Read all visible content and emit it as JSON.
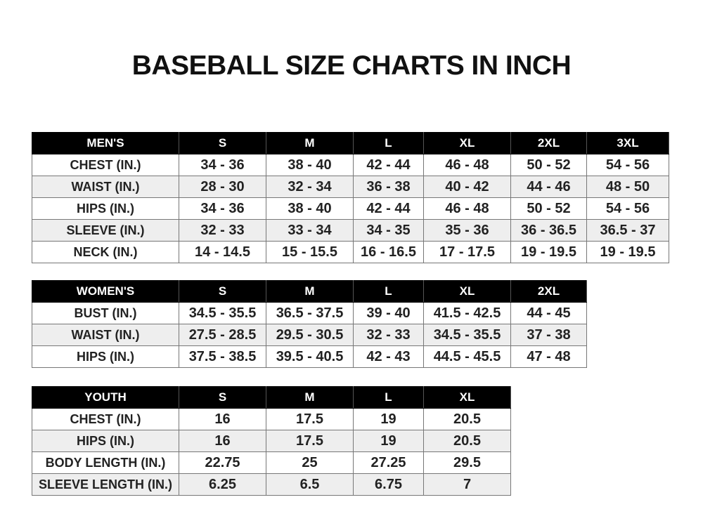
{
  "title": "BASEBALL SIZE CHARTS IN INCH",
  "tables": [
    {
      "header": [
        "MEN'S",
        "S",
        "M",
        "L",
        "XL",
        "2XL",
        "3XL"
      ],
      "rows": [
        [
          "CHEST (IN.)",
          "34 - 36",
          "38 - 40",
          "42 - 44",
          "46 - 48",
          "50 - 52",
          "54 - 56"
        ],
        [
          "WAIST (IN.)",
          "28 - 30",
          "32 - 34",
          "36 - 38",
          "40 - 42",
          "44 - 46",
          "48 - 50"
        ],
        [
          "HIPS (IN.)",
          "34 - 36",
          "38 - 40",
          "42 - 44",
          "46 - 48",
          "50 - 52",
          "54 - 56"
        ],
        [
          "SLEEVE (IN.)",
          "32 - 33",
          "33 - 34",
          "34 - 35",
          "35 - 36",
          "36 - 36.5",
          "36.5 - 37"
        ],
        [
          "NECK (IN.)",
          "14 - 14.5",
          "15 - 15.5",
          "16 - 16.5",
          "17 - 17.5",
          "19 - 19.5",
          "19 - 19.5"
        ]
      ]
    },
    {
      "header": [
        "WOMEN'S",
        "S",
        "M",
        "L",
        "XL",
        "2XL"
      ],
      "rows": [
        [
          "BUST (IN.)",
          "34.5 - 35.5",
          "36.5 - 37.5",
          "39 - 40",
          "41.5 - 42.5",
          "44 - 45"
        ],
        [
          "WAIST (IN.)",
          "27.5 - 28.5",
          "29.5 - 30.5",
          "32 - 33",
          "34.5 - 35.5",
          "37 - 38"
        ],
        [
          "HIPS (IN.)",
          "37.5 - 38.5",
          "39.5 - 40.5",
          "42 - 43",
          "44.5 - 45.5",
          "47 - 48"
        ]
      ]
    },
    {
      "header": [
        "YOUTH",
        "S",
        "M",
        "L",
        "XL"
      ],
      "rows": [
        [
          "CHEST (IN.)",
          "16",
          "17.5",
          "19",
          "20.5"
        ],
        [
          "HIPS (IN.)",
          "16",
          "17.5",
          "19",
          "20.5"
        ],
        [
          "BODY LENGTH (IN.)",
          "22.75",
          "25",
          "27.25",
          "29.5"
        ],
        [
          "SLEEVE LENGTH (IN.)",
          "6.25",
          "6.5",
          "6.75",
          "7"
        ]
      ]
    }
  ]
}
